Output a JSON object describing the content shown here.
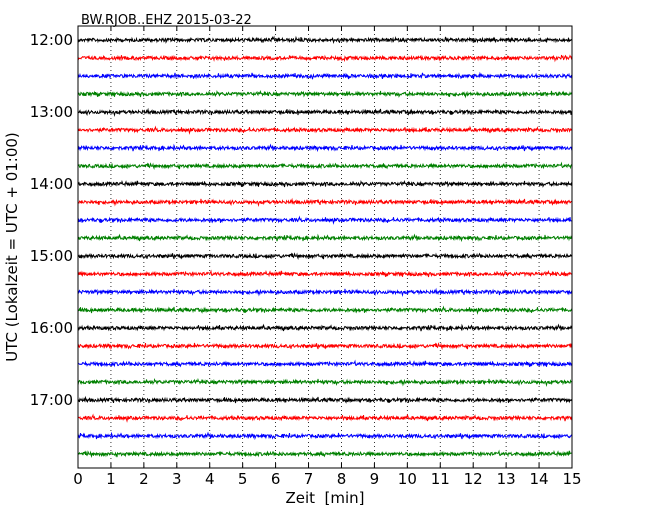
{
  "chart_data": {
    "type": "line",
    "title": "BW.RJOB..EHZ 2015-03-22",
    "xlabel": "Zeit  [min]",
    "ylabel": "UTC (Lokalzeit = UTC + 01:00)",
    "xlim": [
      0,
      15
    ],
    "x_ticks": [
      0,
      1,
      2,
      3,
      4,
      5,
      6,
      7,
      8,
      9,
      10,
      11,
      12,
      13,
      14,
      15
    ],
    "x_tick_labels": [
      "0",
      "1",
      "2",
      "3",
      "4",
      "5",
      "6",
      "7",
      "8",
      "9",
      "10",
      "11",
      "12",
      "13",
      "14",
      "15"
    ],
    "y_tick_labels": [
      "12:00",
      "13:00",
      "14:00",
      "15:00",
      "16:00",
      "17:00"
    ],
    "vertical_grid": "dotted at each minute",
    "trace_colors": [
      "#000000",
      "#ff0000",
      "#0000ff",
      "#008000"
    ],
    "traces": [
      {
        "start": "12:00",
        "color": "#000000"
      },
      {
        "start": "12:15",
        "color": "#ff0000"
      },
      {
        "start": "12:30",
        "color": "#0000ff"
      },
      {
        "start": "12:45",
        "color": "#008000"
      },
      {
        "start": "13:00",
        "color": "#000000"
      },
      {
        "start": "13:15",
        "color": "#ff0000"
      },
      {
        "start": "13:30",
        "color": "#0000ff"
      },
      {
        "start": "13:45",
        "color": "#008000"
      },
      {
        "start": "14:00",
        "color": "#000000"
      },
      {
        "start": "14:15",
        "color": "#ff0000"
      },
      {
        "start": "14:30",
        "color": "#0000ff"
      },
      {
        "start": "14:45",
        "color": "#008000"
      },
      {
        "start": "15:00",
        "color": "#000000"
      },
      {
        "start": "15:15",
        "color": "#ff0000"
      },
      {
        "start": "15:30",
        "color": "#0000ff"
      },
      {
        "start": "15:45",
        "color": "#008000"
      },
      {
        "start": "16:00",
        "color": "#000000"
      },
      {
        "start": "16:15",
        "color": "#ff0000"
      },
      {
        "start": "16:30",
        "color": "#0000ff"
      },
      {
        "start": "16:45",
        "color": "#008000"
      },
      {
        "start": "17:00",
        "color": "#000000"
      },
      {
        "start": "17:15",
        "color": "#ff0000"
      },
      {
        "start": "17:30",
        "color": "#0000ff"
      },
      {
        "start": "17:45",
        "color": "#008000"
      }
    ]
  }
}
